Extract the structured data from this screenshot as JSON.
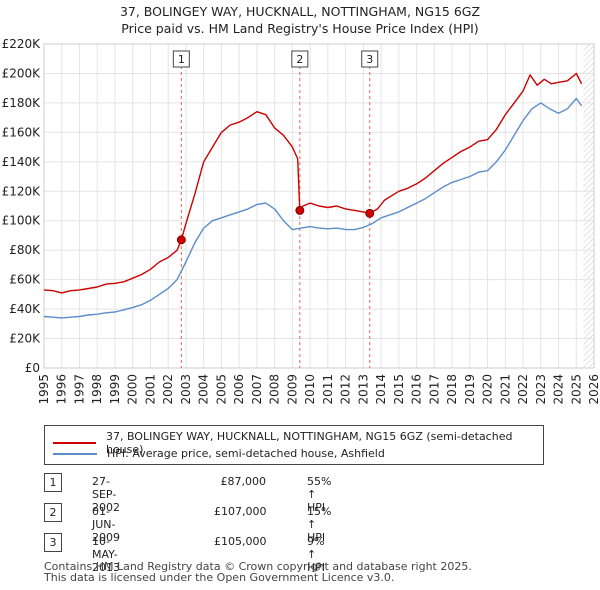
{
  "title": "37, BOLINGEY WAY, HUCKNALL, NOTTINGHAM, NG15 6GZ",
  "subtitle": "Price paid vs. HM Land Registry's House Price Index (HPI)",
  "colors": {
    "property": "#cc0000",
    "hpi": "#5b8ec9",
    "shading": "#dde6f3",
    "marker_line": "#e06060"
  },
  "chart_data": {
    "type": "line",
    "title": "37, BOLINGEY WAY, HUCKNALL, NOTTINGHAM, NG15 6GZ",
    "subtitle": "Price paid vs. HM Land Registry's House Price Index (HPI)",
    "xlim": [
      1995,
      2026
    ],
    "ylim": [
      0,
      220000
    ],
    "y_ticks": [
      0,
      20000,
      40000,
      60000,
      80000,
      100000,
      120000,
      140000,
      160000,
      180000,
      200000,
      220000
    ],
    "y_tick_labels": [
      "£0",
      "£20K",
      "£40K",
      "£60K",
      "£80K",
      "£100K",
      "£120K",
      "£140K",
      "£160K",
      "£180K",
      "£200K",
      "£220K"
    ],
    "x_ticks": [
      1995,
      1996,
      1997,
      1998,
      1999,
      2000,
      2001,
      2002,
      2003,
      2004,
      2005,
      2006,
      2007,
      2008,
      2009,
      2010,
      2011,
      2012,
      2013,
      2014,
      2015,
      2016,
      2017,
      2018,
      2019,
      2020,
      2021,
      2022,
      2023,
      2024,
      2025,
      2026
    ],
    "x_tick_labels": [
      "1995",
      "1996",
      "1997",
      "1998",
      "1999",
      "2000",
      "2001",
      "2002",
      "2003",
      "2004",
      "2005",
      "2006",
      "2007",
      "2008",
      "2009",
      "2010",
      "2011",
      "2012",
      "2013",
      "2014",
      "2015",
      "2016",
      "2017",
      "2018",
      "2019",
      "2020",
      "2021",
      "2022",
      "2023",
      "2024",
      "2025",
      "2026"
    ],
    "grid": true,
    "series": [
      {
        "name": "37, BOLINGEY WAY, HUCKNALL, NOTTINGHAM, NG15 6GZ (semi-detached house)",
        "x": [
          1995.0,
          1995.5,
          1996.0,
          1996.5,
          1997.0,
          1997.5,
          1998.0,
          1998.5,
          1999.0,
          1999.5,
          2000.0,
          2000.5,
          2001.0,
          2001.5,
          2002.0,
          2002.5,
          2002.74,
          2003.0,
          2003.5,
          2004.0,
          2004.5,
          2005.0,
          2005.5,
          2006.0,
          2006.5,
          2007.0,
          2007.5,
          2008.0,
          2008.5,
          2009.0,
          2009.3,
          2009.42,
          2009.6,
          2010.0,
          2010.5,
          2011.0,
          2011.5,
          2012.0,
          2012.5,
          2013.0,
          2013.36,
          2013.8,
          2014.2,
          2014.6,
          2015.0,
          2015.5,
          2016.0,
          2016.5,
          2017.0,
          2017.5,
          2018.0,
          2018.5,
          2019.0,
          2019.5,
          2020.0,
          2020.5,
          2021.0,
          2021.5,
          2022.0,
          2022.4,
          2022.8,
          2023.2,
          2023.6,
          2024.0,
          2024.5,
          2025.0,
          2025.3
        ],
        "values": [
          53000,
          52500,
          51000,
          52500,
          53000,
          54000,
          55000,
          57000,
          57500,
          58500,
          61000,
          63500,
          67000,
          72000,
          75000,
          80000,
          87000,
          98000,
          118000,
          140000,
          150000,
          160000,
          165000,
          167000,
          170000,
          174000,
          172000,
          163000,
          158000,
          150000,
          142000,
          107000,
          110000,
          112000,
          110000,
          109000,
          110000,
          108000,
          107000,
          106000,
          105000,
          108000,
          114000,
          117000,
          120000,
          122000,
          125000,
          129000,
          134000,
          139000,
          143000,
          147000,
          150000,
          154000,
          155000,
          162000,
          172000,
          180000,
          188000,
          199000,
          192000,
          196000,
          193000,
          194000,
          195000,
          200000,
          193000
        ]
      },
      {
        "name": "HPI: Average price, semi-detached house, Ashfield",
        "x": [
          1995.0,
          1995.5,
          1996.0,
          1996.5,
          1997.0,
          1997.5,
          1998.0,
          1998.5,
          1999.0,
          1999.5,
          2000.0,
          2000.5,
          2001.0,
          2001.5,
          2002.0,
          2002.5,
          2003.0,
          2003.5,
          2004.0,
          2004.5,
          2005.0,
          2005.5,
          2006.0,
          2006.5,
          2007.0,
          2007.5,
          2008.0,
          2008.5,
          2009.0,
          2009.5,
          2010.0,
          2010.5,
          2011.0,
          2011.5,
          2012.0,
          2012.5,
          2013.0,
          2013.5,
          2014.0,
          2014.5,
          2015.0,
          2015.5,
          2016.0,
          2016.5,
          2017.0,
          2017.5,
          2018.0,
          2018.5,
          2019.0,
          2019.5,
          2020.0,
          2020.5,
          2021.0,
          2021.5,
          2022.0,
          2022.5,
          2023.0,
          2023.5,
          2024.0,
          2024.5,
          2025.0,
          2025.3
        ],
        "values": [
          35000,
          34500,
          34000,
          34500,
          35000,
          36000,
          36500,
          37500,
          38000,
          39500,
          41000,
          43000,
          46000,
          50000,
          54000,
          60000,
          72000,
          85000,
          95000,
          100000,
          102000,
          104000,
          106000,
          108000,
          111000,
          112000,
          108000,
          100000,
          94000,
          95000,
          96000,
          95000,
          94500,
          95000,
          94000,
          94000,
          95500,
          98000,
          102000,
          104000,
          106000,
          109000,
          112000,
          115000,
          119000,
          123000,
          126000,
          128000,
          130000,
          133000,
          134000,
          140000,
          148000,
          158000,
          168000,
          176000,
          180000,
          176000,
          173000,
          176000,
          183000,
          178000
        ]
      }
    ],
    "sales": [
      {
        "label": "1",
        "x": 2002.74,
        "value": 87000
      },
      {
        "label": "2",
        "x": 2009.42,
        "value": 107000
      },
      {
        "label": "3",
        "x": 2013.36,
        "value": 105000
      }
    ],
    "forecast_from": 2025.4
  },
  "legend": {
    "property_label": "37, BOLINGEY WAY, HUCKNALL, NOTTINGHAM, NG15 6GZ (semi-detached house)",
    "hpi_label": "HPI: Average price, semi-detached house, Ashfield"
  },
  "sales_table": [
    {
      "num": "1",
      "date": "27-SEP-2002",
      "price": "£87,000",
      "hpi": "55% ↑ HPI"
    },
    {
      "num": "2",
      "date": "01-JUN-2009",
      "price": "£107,000",
      "hpi": "15% ↑ HPI"
    },
    {
      "num": "3",
      "date": "10-MAY-2013",
      "price": "£105,000",
      "hpi": "9% ↑ HPI"
    }
  ],
  "footer": {
    "line1": "Contains HM Land Registry data © Crown copyright and database right 2025.",
    "line2": "This data is licensed under the Open Government Licence v3.0."
  }
}
